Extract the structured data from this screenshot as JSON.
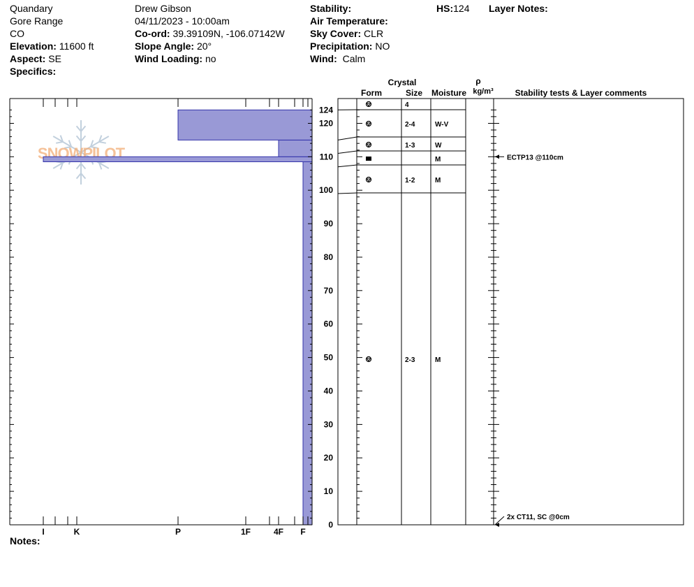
{
  "header": {
    "location": "Quandary",
    "range": "Gore Range",
    "state": "CO",
    "elevation_label": "Elevation:",
    "elevation_value": "11600 ft",
    "aspect_label": "Aspect:",
    "aspect_value": "SE",
    "specifics_label": "Specifics:",
    "observer": "Drew Gibson",
    "datetime": "04/11/2023 - 10:00am",
    "coord_label": "Co-ord:",
    "coord_value": "39.39109N, -106.07142W",
    "slope_label": "Slope Angle:",
    "slope_value": "20°",
    "wind_loading_label": "Wind Loading:",
    "wind_loading_value": "no",
    "stability_label": "Stability:",
    "air_temp_label": "Air Temperature:",
    "sky_label": "Sky Cover:",
    "sky_value": "CLR",
    "precip_label": "Precipitation:",
    "precip_value": "NO",
    "wind_label": "Wind:",
    "wind_value": "Calm",
    "hs_label": "HS:",
    "hs_value": "124",
    "layer_notes_label": "Layer Notes:"
  },
  "notes_label": "Notes:",
  "logo_text": "SNOWPILOT",
  "colors": {
    "bar_fill": "#9999d6",
    "bar_stroke": "#3333aa",
    "logo": "#f0a060",
    "flake": "#b8c8d8"
  },
  "columns": {
    "crystal": "Crystal",
    "form": "Form",
    "size": "Size",
    "moisture": "Moisture",
    "rho": "ρ",
    "density_unit": "kg/m³",
    "comments": "Stability tests & Layer comments"
  },
  "chart_data": {
    "type": "bar",
    "ylim": [
      0,
      124
    ],
    "y_ticks": [
      0,
      10,
      20,
      30,
      40,
      50,
      60,
      70,
      80,
      90,
      100,
      110,
      120,
      124
    ],
    "hardness_scale": [
      "F",
      "4F",
      "1F",
      "P",
      "K",
      "I"
    ],
    "x_tick_labels": [
      "I",
      "K",
      "P",
      "1F",
      "4F",
      "F"
    ],
    "hardness_layers": [
      {
        "bottom": 0,
        "top": 108.5,
        "hardness": "F"
      },
      {
        "bottom": 108.5,
        "top": 110,
        "hardness": "I"
      },
      {
        "bottom": 110,
        "top": 115,
        "hardness": "4F"
      },
      {
        "bottom": 115,
        "top": 124,
        "hardness": "P"
      }
    ],
    "layer_boundaries": [
      124,
      115,
      111,
      107,
      99
    ],
    "crystal_rows": [
      {
        "top": 124,
        "bottom": 124,
        "y": 125,
        "form": "faceted-rounded",
        "size": "4",
        "moisture": ""
      },
      {
        "top": 124,
        "bottom": 115,
        "y": 119.5,
        "form": "faceted-rounded",
        "size": "2-4",
        "moisture": "W-V"
      },
      {
        "top": 115,
        "bottom": 111,
        "y": 113,
        "form": "faceted-rounded",
        "size": "1-3",
        "moisture": "W"
      },
      {
        "top": 111,
        "bottom": 107,
        "y": 109,
        "form": "ice-layer",
        "size": "",
        "moisture": "M"
      },
      {
        "top": 107,
        "bottom": 99,
        "y": 103,
        "form": "faceted-rounded",
        "size": "1-2",
        "moisture": "M"
      },
      {
        "top": 99,
        "bottom": 0,
        "y": 49.5,
        "form": "faceted-rounded",
        "size": "2-3",
        "moisture": "M"
      }
    ],
    "stability_tests": [
      {
        "height": 110,
        "label": "ECTP13 @110cm"
      },
      {
        "height": 0,
        "label": "2x CT11, SC @0cm"
      }
    ]
  }
}
